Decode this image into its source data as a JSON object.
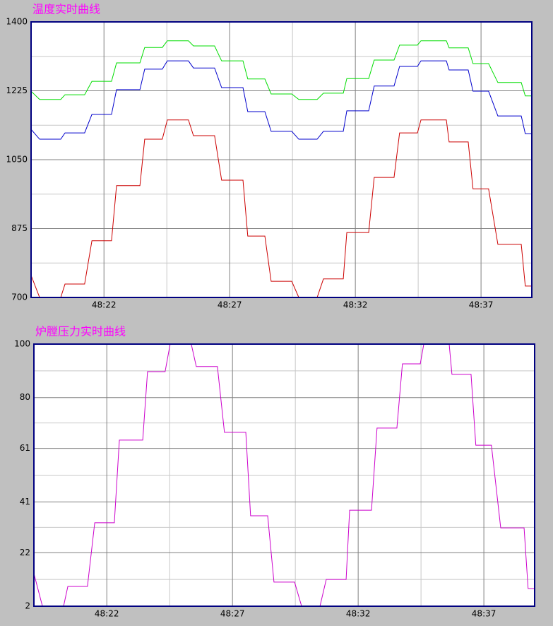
{
  "chart_data": [
    {
      "type": "line",
      "title": "温度实时曲线",
      "x": [
        19.1,
        19.44,
        20.28,
        20.45,
        21.23,
        21.52,
        22.3,
        22.5,
        23.43,
        23.62,
        24.32,
        24.52,
        25.36,
        25.56,
        26.4,
        26.68,
        27.53,
        27.72,
        28.4,
        28.65,
        29.47,
        29.75,
        30.48,
        30.73,
        31.52,
        31.66,
        32.53,
        32.75,
        33.54,
        33.76,
        34.47,
        34.61,
        35.62,
        35.73,
        36.49,
        36.68,
        37.3,
        37.67,
        38.6,
        38.76,
        39.02
      ],
      "series": [
        {
          "color": "#cc0000",
          "values": [
            756,
            700,
            700,
            734,
            734,
            844,
            844,
            984,
            984,
            1102,
            1102,
            1151,
            1151,
            1111,
            1111,
            998,
            998,
            856,
            856,
            741,
            741,
            700,
            700,
            747,
            747,
            865,
            865,
            1005,
            1005,
            1118,
            1118,
            1151,
            1151,
            1095,
            1095,
            976,
            976,
            835,
            835,
            729,
            729
          ]
        },
        {
          "color": "#0000cc",
          "values": [
            1127,
            1102,
            1102,
            1118,
            1118,
            1165,
            1165,
            1228,
            1228,
            1280,
            1280,
            1301,
            1301,
            1283,
            1283,
            1233,
            1233,
            1172,
            1172,
            1122,
            1122,
            1102,
            1102,
            1122,
            1122,
            1174,
            1174,
            1237,
            1237,
            1287,
            1287,
            1301,
            1301,
            1278,
            1278,
            1224,
            1224,
            1161,
            1161,
            1116,
            1116
          ]
        },
        {
          "color": "#00dd00",
          "values": [
            1224,
            1203,
            1203,
            1215,
            1215,
            1249,
            1249,
            1296,
            1296,
            1335,
            1335,
            1352,
            1352,
            1339,
            1339,
            1301,
            1301,
            1255,
            1255,
            1217,
            1217,
            1203,
            1203,
            1219,
            1219,
            1256,
            1256,
            1303,
            1303,
            1341,
            1341,
            1352,
            1352,
            1334,
            1334,
            1294,
            1294,
            1246,
            1246,
            1212,
            1212
          ]
        }
      ],
      "xlim": [
        19.1,
        39.02
      ],
      "xticks": [
        {
          "value": 22,
          "label": "48:22"
        },
        {
          "value": 27,
          "label": "48:27"
        },
        {
          "value": 32,
          "label": "48:32"
        },
        {
          "value": 37,
          "label": "48:37"
        }
      ],
      "ylim": [
        700,
        1400
      ],
      "yticks": [
        700,
        875,
        1050,
        1225,
        1400
      ],
      "grid": true,
      "minor_grid": true
    },
    {
      "type": "line",
      "title": "炉膛压力实时曲线",
      "x": [
        19.1,
        19.44,
        20.28,
        20.45,
        21.23,
        21.52,
        22.3,
        22.5,
        23.43,
        23.62,
        24.32,
        24.52,
        25.36,
        25.56,
        26.4,
        26.68,
        27.53,
        27.72,
        28.4,
        28.65,
        29.47,
        29.75,
        30.48,
        30.73,
        31.52,
        31.66,
        32.53,
        32.75,
        33.54,
        33.76,
        34.47,
        34.61,
        35.62,
        35.73,
        36.49,
        36.68,
        37.3,
        37.67,
        38.6,
        38.76,
        39.02
      ],
      "series": [
        {
          "color": "#cc00cc",
          "values": [
            14.2,
            2,
            2,
            9.4,
            9.4,
            33.2,
            33.2,
            64.1,
            64.1,
            89.7,
            89.7,
            100,
            100,
            91.6,
            91.6,
            67.0,
            67.0,
            35.8,
            35.8,
            11.0,
            11.0,
            2,
            2,
            12.0,
            12.0,
            37.9,
            37.9,
            68.6,
            68.6,
            92.6,
            92.6,
            100,
            100,
            88.7,
            88.7,
            62.2,
            62.2,
            31.3,
            31.3,
            8.6,
            8.6
          ]
        }
      ],
      "xlim": [
        19.1,
        39.02
      ],
      "xticks": [
        {
          "value": 22,
          "label": "48:22"
        },
        {
          "value": 27,
          "label": "48:27"
        },
        {
          "value": 32,
          "label": "48:32"
        },
        {
          "value": 37,
          "label": "48:37"
        }
      ],
      "ylim": [
        2,
        100
      ],
      "yticks": [
        2,
        22,
        41,
        61,
        80,
        100
      ],
      "grid": true,
      "minor_grid": true
    }
  ]
}
